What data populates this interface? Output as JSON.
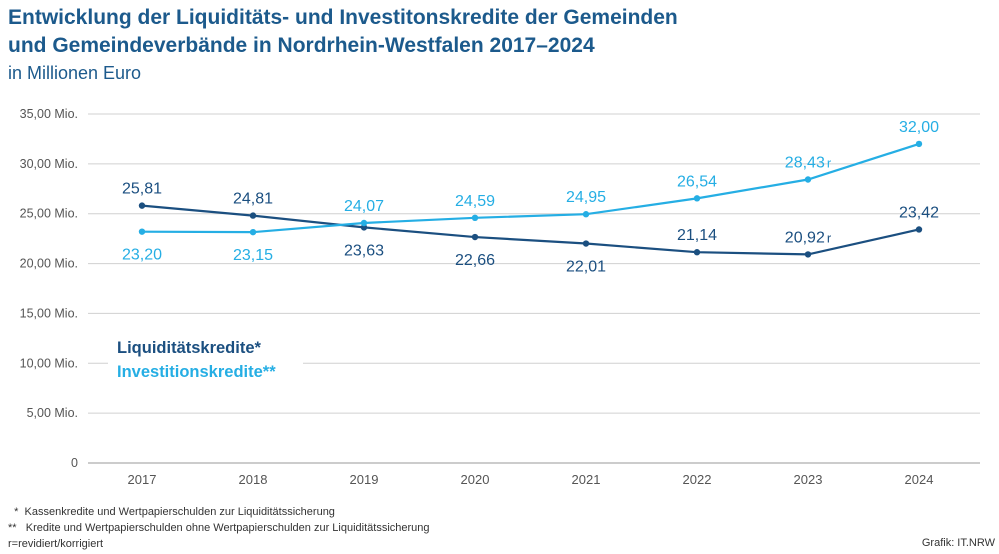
{
  "header": {
    "title_line1": "Entwicklung der Liquiditäts- und Investitonskredite der Gemeinden",
    "title_line2": "und Gemeindeverbände in Nordrhein-Westfalen 2017–2024",
    "subtitle": "in Millionen Euro"
  },
  "colors": {
    "liquiditaet": "#1b4f80",
    "investition": "#25aee4",
    "grid": "#d0d0d0",
    "axis": "#9a9a9a"
  },
  "chart_data": {
    "type": "line",
    "title": "Entwicklung der Liquiditäts- und Investitonskredite der Gemeinden und Gemeindeverbände in Nordrhein-Westfalen 2017–2024",
    "subtitle": "in Millionen Euro",
    "categories": [
      "2017",
      "2018",
      "2019",
      "2020",
      "2021",
      "2022",
      "2023",
      "2024"
    ],
    "ylim": [
      0,
      35
    ],
    "yticks": [
      {
        "value": 35,
        "label": "35,00 Mio."
      },
      {
        "value": 30,
        "label": "30,00 Mio."
      },
      {
        "value": 25,
        "label": "25,00 Mio."
      },
      {
        "value": 20,
        "label": "20,00 Mio."
      },
      {
        "value": 15,
        "label": "15,00 Mio."
      },
      {
        "value": 10,
        "label": "10,00 Mio."
      },
      {
        "value": 5,
        "label": "5,00 Mio."
      },
      {
        "value": 0,
        "label": "0"
      }
    ],
    "grid": true,
    "legend_position": "left-middle",
    "series": [
      {
        "name": "Liquiditätskredite*",
        "color": "#1b4f80",
        "values": [
          25.81,
          24.81,
          23.63,
          22.66,
          22.01,
          21.14,
          20.92,
          23.42
        ],
        "labels": [
          "25,81",
          "24,81",
          "23,63",
          "22,66",
          "22,01",
          "21,14",
          "20,92",
          "23,42"
        ],
        "label_positions": [
          "above",
          "above",
          "below",
          "below",
          "below",
          "above",
          "above",
          "above"
        ],
        "revised": [
          false,
          false,
          false,
          false,
          false,
          false,
          true,
          false
        ]
      },
      {
        "name": "Investitionskredite**",
        "color": "#25aee4",
        "values": [
          23.2,
          23.15,
          24.07,
          24.59,
          24.95,
          26.54,
          28.43,
          32.0
        ],
        "labels": [
          "23,20",
          "23,15",
          "24,07",
          "24,59",
          "24,95",
          "26,54",
          "28,43",
          "32,00"
        ],
        "label_positions": [
          "below",
          "below",
          "above",
          "above",
          "above",
          "above",
          "above",
          "above"
        ],
        "revised": [
          false,
          false,
          false,
          false,
          false,
          false,
          true,
          false
        ]
      }
    ],
    "revised_marker": "r"
  },
  "footnotes": [
    "  *  Kassenkredite und Wertpapierschulden zur Liquiditätssicherung",
    "**   Kredite und Wertpapierschulden ohne Wertpapierschulden zur Liquiditätssicherung",
    "r=revidiert/korrigiert"
  ],
  "credit": "Grafik: IT.NRW"
}
